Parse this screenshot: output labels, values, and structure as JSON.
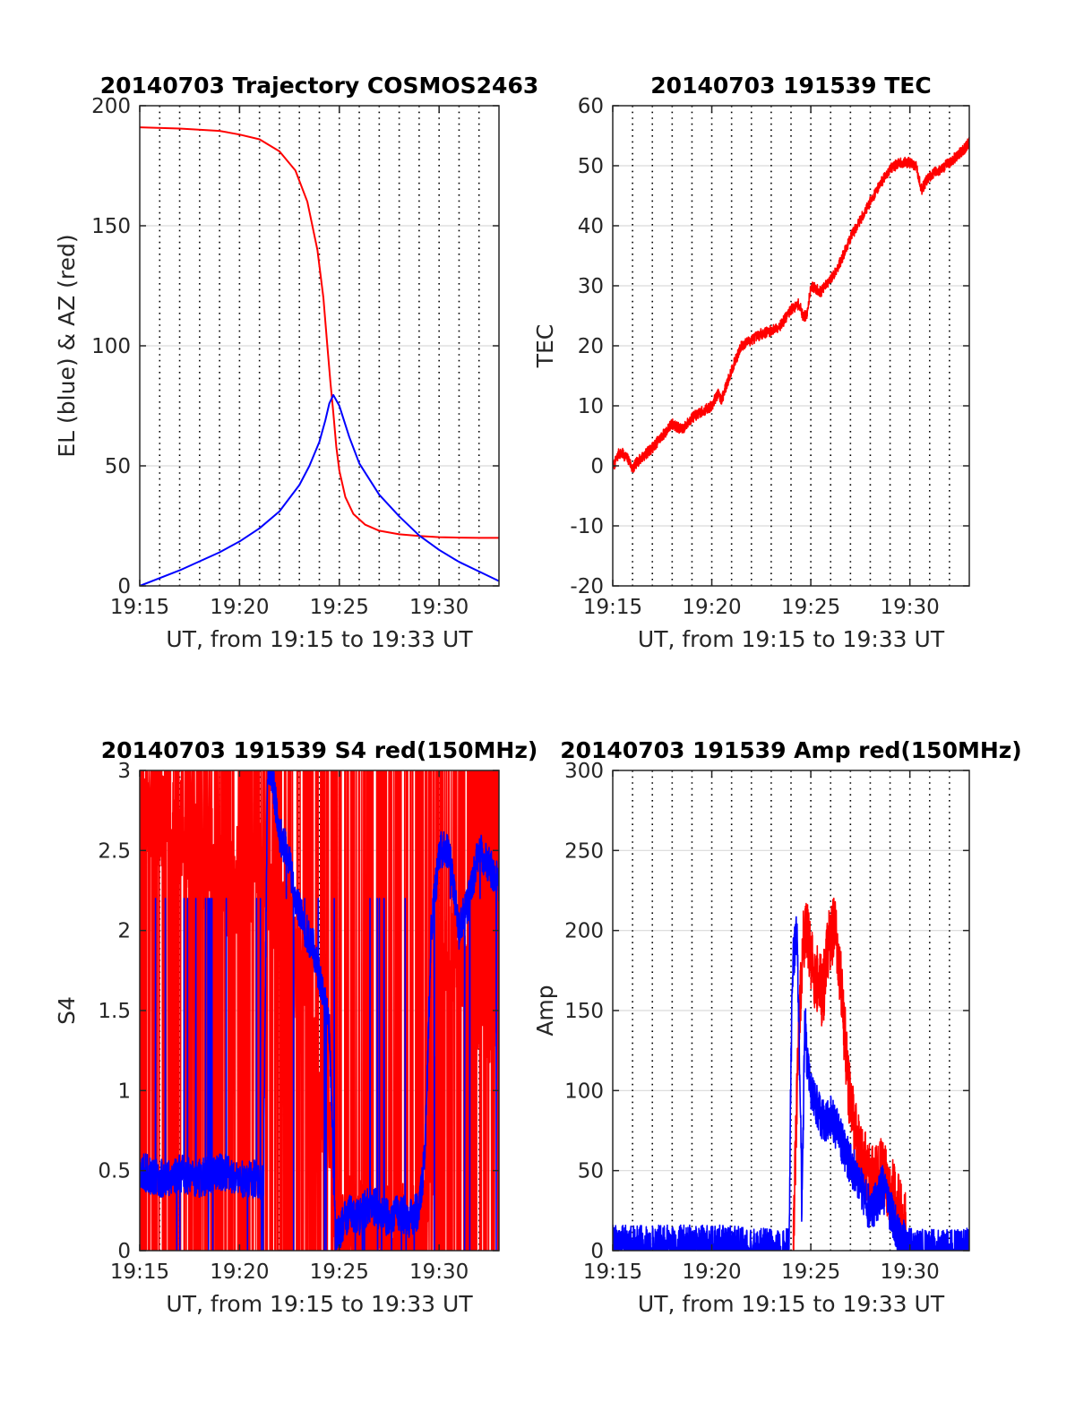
{
  "figure": {
    "colors": {
      "red": "#ff0000",
      "blue": "#0000ff",
      "grid": "#d9d9d9",
      "axis": "#262626"
    }
  },
  "chart_data": [
    {
      "id": "trajectory",
      "type": "line",
      "title": "20140703 Trajectory COSMOS2463",
      "xlabel": "UT, from 19:15 to 19:33 UT",
      "ylabel": "EL (blue) & AZ (red)",
      "xlim": [
        0,
        18
      ],
      "ylim": [
        0,
        200
      ],
      "yticks": [
        0,
        50,
        100,
        150,
        200
      ],
      "xticks": [
        0,
        5,
        10,
        15
      ],
      "xtick_labels": [
        "19:15",
        "19:20",
        "19:25",
        "19:30"
      ],
      "vertical_dotted_minutes": [
        1,
        2,
        3,
        4,
        5,
        6,
        7,
        8,
        9,
        10,
        11,
        12,
        13,
        14,
        15,
        16,
        17
      ],
      "grid": "horizontal-major",
      "series": [
        {
          "color": "red",
          "mode": "smooth",
          "x": [
            0,
            2,
            4,
            5,
            6,
            7,
            7.8,
            8.4,
            8.9,
            9.2,
            9.4,
            9.55,
            9.7,
            9.85,
            10.0,
            10.3,
            10.7,
            11.3,
            12,
            13,
            14,
            15,
            16,
            17,
            18
          ],
          "y": [
            191,
            190.5,
            189.5,
            188,
            186,
            181,
            173,
            160,
            140,
            120,
            100,
            85,
            72,
            58,
            48,
            37,
            30,
            25.5,
            23,
            21.5,
            20.8,
            20.3,
            20.1,
            20,
            20
          ]
        },
        {
          "color": "blue",
          "mode": "smooth",
          "x": [
            0,
            2,
            4,
            5,
            6,
            7,
            8,
            8.5,
            9,
            9.3,
            9.5,
            9.7,
            10,
            10.5,
            11,
            12,
            13,
            14,
            15,
            16,
            17,
            18
          ],
          "y": [
            0,
            6.5,
            14,
            18.5,
            24,
            31,
            42,
            50,
            60,
            69,
            76,
            79.5,
            75,
            62,
            51,
            38,
            29,
            21,
            15,
            10,
            6,
            2
          ]
        }
      ]
    },
    {
      "id": "tec",
      "type": "line",
      "title": "20140703 191539 TEC",
      "xlabel": "UT, from 19:15 to 19:33 UT",
      "ylabel": "TEC",
      "xlim": [
        0,
        18
      ],
      "ylim": [
        -20,
        60
      ],
      "yticks": [
        -20,
        -10,
        0,
        10,
        20,
        30,
        40,
        50,
        60
      ],
      "xticks": [
        0,
        5,
        10,
        15
      ],
      "xtick_labels": [
        "19:15",
        "19:20",
        "19:25",
        "19:30"
      ],
      "vertical_dotted_minutes": [
        1,
        2,
        3,
        4,
        5,
        6,
        7,
        8,
        9,
        10,
        11,
        12,
        13,
        14,
        15,
        16,
        17
      ],
      "grid": "horizontal-major",
      "series": [
        {
          "color": "red",
          "mode": "noisy",
          "noise": 0.9,
          "seed": 7,
          "x": [
            0.05,
            0.3,
            0.5,
            0.8,
            1.0,
            1.2,
            1.5,
            2.0,
            2.5,
            3.0,
            3.5,
            4.0,
            4.5,
            5.0,
            5.3,
            5.5,
            6.0,
            6.5,
            7.0,
            7.5,
            8.0,
            8.5,
            9.0,
            9.4,
            9.6,
            9.8,
            10.0,
            10.5,
            11.0,
            11.5,
            12.0,
            12.5,
            13.0,
            13.5,
            14.0,
            14.5,
            15.0,
            15.3,
            15.6,
            15.9,
            16.3,
            16.6,
            17.0,
            17.5,
            17.8,
            18.0
          ],
          "y": [
            0,
            2,
            2,
            1,
            -0.5,
            0.5,
            1.5,
            3,
            5,
            7,
            6,
            8,
            9,
            10,
            12,
            11,
            16,
            20,
            21,
            22,
            22.5,
            23.5,
            26,
            27,
            25,
            25,
            30,
            29,
            31,
            34,
            38,
            41,
            44,
            47,
            49.5,
            50.5,
            50.5,
            50,
            46,
            48,
            49,
            49.5,
            50.5,
            52,
            53,
            54
          ]
        }
      ]
    },
    {
      "id": "s4",
      "type": "line",
      "title": "20140703 191539 S4 red(150MHz)",
      "xlabel": "UT, from 19:15 to 19:33 UT",
      "ylabel": "S4",
      "xlim": [
        0,
        18
      ],
      "ylim": [
        0,
        3
      ],
      "yticks": [
        0,
        0.5,
        1,
        1.5,
        2,
        2.5,
        3
      ],
      "ytick_labels": [
        "0",
        "0.5",
        "1",
        "1.5",
        "2",
        "2.5",
        "3"
      ],
      "xticks": [
        0,
        5,
        10,
        15
      ],
      "xtick_labels": [
        "19:15",
        "19:20",
        "19:25",
        "19:30"
      ],
      "vertical_dotted_minutes": [
        1,
        2,
        3,
        4,
        5,
        6,
        7,
        8,
        9,
        10,
        11,
        12,
        13,
        14,
        15,
        16,
        17
      ],
      "grid": "horizontal-major",
      "series": [
        {
          "color": "red",
          "mode": "spiky",
          "noise": 0.35,
          "spike_prob": 0.45,
          "spike_hi": 3,
          "seed": 11,
          "x": [
            0.0,
            1.5,
            3.0,
            4.5,
            6.0,
            6.8,
            7.2,
            7.8,
            8.3,
            8.7,
            9.0,
            9.5,
            9.7,
            10.0,
            11.0,
            12.0,
            13.0,
            14.0,
            14.3,
            14.6,
            15.0,
            15.5,
            16.0,
            17.0,
            18.0
          ],
          "y": [
            2.8,
            2.7,
            2.5,
            2.3,
            2.4,
            2.2,
            2.0,
            1.8,
            1.6,
            1.2,
            0.9,
            0.85,
            0.25,
            0.15,
            0.1,
            0.1,
            0.1,
            0.05,
            0.1,
            0.4,
            1.3,
            2.0,
            1.8,
            1.5,
            1.5
          ]
        },
        {
          "color": "blue",
          "mode": "spiky",
          "noise": 0.12,
          "spike_prob": 0.02,
          "spike_hi": 2.2,
          "seed": 23,
          "x": [
            0.0,
            1.0,
            2.0,
            3.0,
            4.0,
            5.0,
            6.0,
            6.2,
            6.4,
            6.6,
            7.0,
            7.4,
            7.8,
            8.3,
            8.7,
            9.2,
            9.5,
            9.8,
            10.0,
            10.3,
            10.6,
            11.0,
            11.5,
            12.0,
            12.5,
            13.0,
            13.5,
            14.0,
            14.3,
            14.6,
            15.0,
            15.5,
            16.0,
            16.5,
            17.0,
            17.5,
            18.0
          ],
          "y": [
            0.5,
            0.45,
            0.48,
            0.45,
            0.5,
            0.45,
            0.45,
            0.4,
            3,
            3,
            2.6,
            2.5,
            2.2,
            2.0,
            1.9,
            1.6,
            1.4,
            0.1,
            0.1,
            0.2,
            0.25,
            0.2,
            0.3,
            0.25,
            0.2,
            0.25,
            0.2,
            0.25,
            0.6,
            2.0,
            2.5,
            2.5,
            2.0,
            2.2,
            2.5,
            2.4,
            2.3
          ]
        }
      ]
    },
    {
      "id": "amp",
      "type": "line",
      "title": "20140703 191539 Amp red(150MHz)",
      "xlabel": "UT, from 19:15 to 19:33 UT",
      "ylabel": "Amp",
      "xlim": [
        0,
        18
      ],
      "ylim": [
        0,
        300
      ],
      "yticks": [
        0,
        50,
        100,
        150,
        200,
        250,
        300
      ],
      "xticks": [
        0,
        5,
        10,
        15
      ],
      "xtick_labels": [
        "19:15",
        "19:20",
        "19:25",
        "19:30"
      ],
      "vertical_dotted_minutes": [
        1,
        2,
        3,
        4,
        5,
        6,
        7,
        8,
        9,
        10,
        11,
        12,
        13,
        14,
        15,
        16,
        17
      ],
      "grid": "horizontal-major",
      "series": [
        {
          "color": "red",
          "mode": "noisy",
          "noise": 22,
          "seed": 31,
          "x": [
            9.1,
            9.4,
            9.6,
            9.8,
            10.0,
            10.3,
            10.6,
            10.9,
            11.2,
            11.5,
            11.8,
            12.0,
            12.5,
            13.0,
            13.5,
            14.0,
            14.3,
            14.6,
            14.8
          ],
          "y": [
            0,
            140,
            190,
            200,
            180,
            170,
            160,
            190,
            205,
            170,
            120,
            90,
            60,
            45,
            50,
            40,
            30,
            20,
            15
          ]
        },
        {
          "color": "blue",
          "mode": "noisy",
          "noise": 14,
          "seed": 41,
          "x": [
            0.0,
            3.0,
            6.0,
            6.8,
            8.5,
            8.9,
            9.0,
            9.1,
            9.3,
            9.45,
            9.55,
            9.7,
            9.8,
            10.0,
            10.3,
            10.6,
            11.0,
            11.5,
            12.0,
            12.5,
            13.0,
            13.3,
            13.6,
            14.0,
            14.4,
            14.7,
            15.0,
            15.5,
            16.0,
            17.0,
            18.0
          ],
          "y": [
            2,
            2,
            2,
            0,
            0,
            0,
            120,
            180,
            200,
            110,
            20,
            150,
            120,
            100,
            90,
            80,
            85,
            70,
            55,
            40,
            25,
            30,
            40,
            25,
            10,
            5,
            0,
            0,
            0,
            0,
            0
          ]
        }
      ]
    }
  ]
}
